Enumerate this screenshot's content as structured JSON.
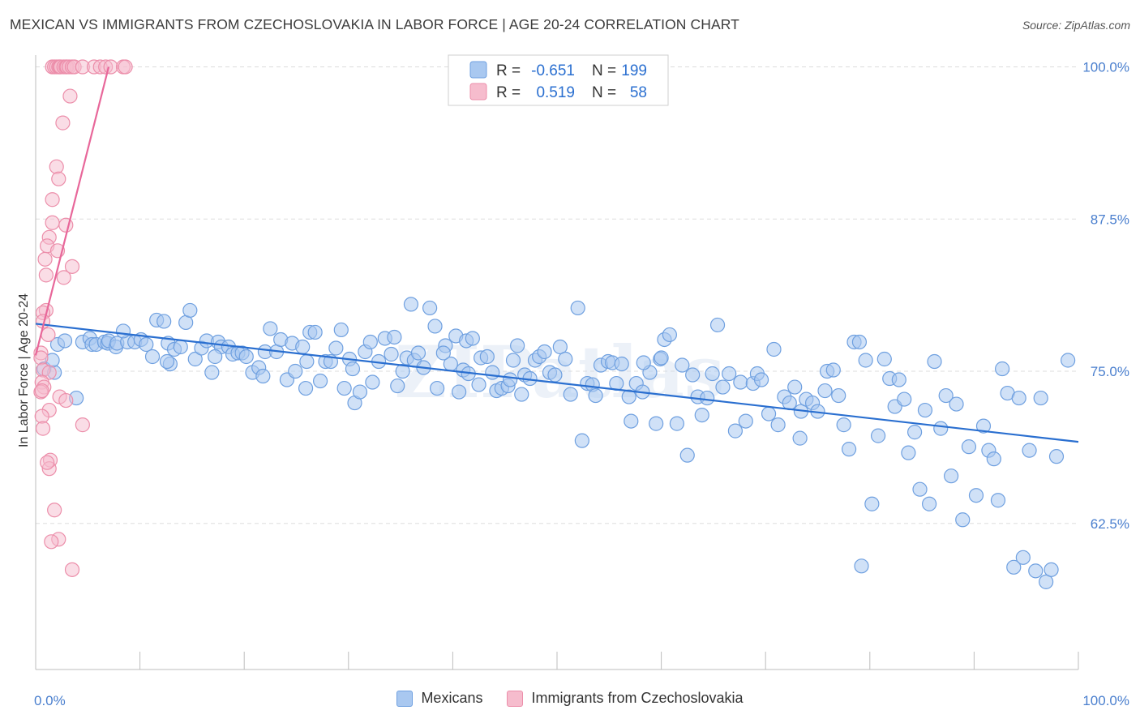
{
  "title": "MEXICAN VS IMMIGRANTS FROM CZECHOSLOVAKIA IN LABOR FORCE | AGE 20-24 CORRELATION CHART",
  "source": "Source: ZipAtlas.com",
  "watermark": "ZIPatlas",
  "colors": {
    "blue_fill": "#a9c8f0",
    "blue_stroke": "#6fa0e0",
    "blue_line": "#2a6fd0",
    "pink_fill": "#f6bccd",
    "pink_stroke": "#ec8eaa",
    "pink_line": "#e8679a",
    "tick_text": "#4a7fce",
    "grid": "#dddddd"
  },
  "legend": {
    "rows": [
      {
        "r_label": "R =",
        "r_value": "-0.651",
        "n_label": "N =",
        "n_value": "199"
      },
      {
        "r_label": "R =",
        "r_value": "0.519",
        "n_label": "N =",
        "n_value": "58"
      }
    ]
  },
  "bottom_legend": [
    "Mexicans",
    "Immigrants from Czechoslovakia"
  ],
  "chart_data": {
    "type": "scatter",
    "title": "MEXICAN VS IMMIGRANTS FROM CZECHOSLOVAKIA IN LABOR FORCE | AGE 20-24 CORRELATION CHART",
    "xlabel": "",
    "ylabel": "In Labor Force | Age 20-24",
    "xlim": [
      0,
      100
    ],
    "ylim": [
      50.5,
      101.5
    ],
    "x_tick_labels": [
      "0.0%",
      "100.0%"
    ],
    "y_ticks": [
      62.5,
      75.0,
      87.5,
      100.0
    ],
    "y_tick_labels": [
      "62.5%",
      "75.0%",
      "87.5%",
      "100.0%"
    ],
    "grid": true,
    "series": [
      {
        "name": "Mexicans",
        "R": -0.651,
        "N": 199,
        "trend": {
          "x": [
            0,
            100
          ],
          "y": [
            78.9,
            69.2
          ]
        },
        "points": [
          [
            0.8,
            75.2
          ],
          [
            1.8,
            74.9
          ],
          [
            1.6,
            75.9
          ],
          [
            2.1,
            77.2
          ],
          [
            2.8,
            77.5
          ],
          [
            3.9,
            72.8
          ],
          [
            4.5,
            77.4
          ],
          [
            5.2,
            77.7
          ],
          [
            5.4,
            77.2
          ],
          [
            5.8,
            77.2
          ],
          [
            6.6,
            77.4
          ],
          [
            6.9,
            77.3
          ],
          [
            7.0,
            77.5
          ],
          [
            7.7,
            77.0
          ],
          [
            7.8,
            77.3
          ],
          [
            8.8,
            77.4
          ],
          [
            8.4,
            78.3
          ],
          [
            9.5,
            77.4
          ],
          [
            10.1,
            77.6
          ],
          [
            10.6,
            77.2
          ],
          [
            11.2,
            76.2
          ],
          [
            11.6,
            79.2
          ],
          [
            12.3,
            79.1
          ],
          [
            12.7,
            77.3
          ],
          [
            12.9,
            75.6
          ],
          [
            13.3,
            76.8
          ],
          [
            13.9,
            77.0
          ],
          [
            14.4,
            79.0
          ],
          [
            14.8,
            80.0
          ],
          [
            15.3,
            76.0
          ],
          [
            15.9,
            76.9
          ],
          [
            16.4,
            77.5
          ],
          [
            16.9,
            74.9
          ],
          [
            17.5,
            77.4
          ],
          [
            17.8,
            77.0
          ],
          [
            18.5,
            77.0
          ],
          [
            18.9,
            76.4
          ],
          [
            19.4,
            76.5
          ],
          [
            19.8,
            76.5
          ],
          [
            20.2,
            76.2
          ],
          [
            20.8,
            74.9
          ],
          [
            21.4,
            75.3
          ],
          [
            22.0,
            76.6
          ],
          [
            22.5,
            78.5
          ],
          [
            23.1,
            76.6
          ],
          [
            23.5,
            77.6
          ],
          [
            24.1,
            74.3
          ],
          [
            24.6,
            77.3
          ],
          [
            24.9,
            75.0
          ],
          [
            25.6,
            77.0
          ],
          [
            25.9,
            73.6
          ],
          [
            26.3,
            78.2
          ],
          [
            26.8,
            78.2
          ],
          [
            27.3,
            74.2
          ],
          [
            27.8,
            75.8
          ],
          [
            28.3,
            75.8
          ],
          [
            28.8,
            76.9
          ],
          [
            29.3,
            78.4
          ],
          [
            29.6,
            73.6
          ],
          [
            30.1,
            76.0
          ],
          [
            30.6,
            72.4
          ],
          [
            31.1,
            73.3
          ],
          [
            31.6,
            76.6
          ],
          [
            32.1,
            77.4
          ],
          [
            32.3,
            74.1
          ],
          [
            32.9,
            75.8
          ],
          [
            33.5,
            77.7
          ],
          [
            34.1,
            76.4
          ],
          [
            34.7,
            73.8
          ],
          [
            35.2,
            75.0
          ],
          [
            35.6,
            76.1
          ],
          [
            36.0,
            80.5
          ],
          [
            36.3,
            75.9
          ],
          [
            36.7,
            76.5
          ],
          [
            37.2,
            75.3
          ],
          [
            37.8,
            80.2
          ],
          [
            38.3,
            78.7
          ],
          [
            38.5,
            73.6
          ],
          [
            39.3,
            77.1
          ],
          [
            39.8,
            75.6
          ],
          [
            40.3,
            77.9
          ],
          [
            40.6,
            73.3
          ],
          [
            41.0,
            75.1
          ],
          [
            41.3,
            77.5
          ],
          [
            41.9,
            77.7
          ],
          [
            42.5,
            73.9
          ],
          [
            42.7,
            76.1
          ],
          [
            43.3,
            76.2
          ],
          [
            43.8,
            74.9
          ],
          [
            44.2,
            73.4
          ],
          [
            44.7,
            73.6
          ],
          [
            45.3,
            73.8
          ],
          [
            45.5,
            74.3
          ],
          [
            46.2,
            77.1
          ],
          [
            46.6,
            73.1
          ],
          [
            46.9,
            74.7
          ],
          [
            47.4,
            74.4
          ],
          [
            47.9,
            75.9
          ],
          [
            48.3,
            76.2
          ],
          [
            48.8,
            76.6
          ],
          [
            49.3,
            74.9
          ],
          [
            49.8,
            74.7
          ],
          [
            50.3,
            77.0
          ],
          [
            50.8,
            76.0
          ],
          [
            51.3,
            73.1
          ],
          [
            52.0,
            80.2
          ],
          [
            52.4,
            69.3
          ],
          [
            52.9,
            74.0
          ],
          [
            53.4,
            73.9
          ],
          [
            53.7,
            73.0
          ],
          [
            54.2,
            75.5
          ],
          [
            54.9,
            75.8
          ],
          [
            55.3,
            75.7
          ],
          [
            55.7,
            74.0
          ],
          [
            56.2,
            75.6
          ],
          [
            56.9,
            72.9
          ],
          [
            57.1,
            70.9
          ],
          [
            57.6,
            74.0
          ],
          [
            58.2,
            73.3
          ],
          [
            58.9,
            74.9
          ],
          [
            59.5,
            70.7
          ],
          [
            59.9,
            76.0
          ],
          [
            60.3,
            77.6
          ],
          [
            60.8,
            78.0
          ],
          [
            61.5,
            70.7
          ],
          [
            62.0,
            75.5
          ],
          [
            62.5,
            68.1
          ],
          [
            63.0,
            74.7
          ],
          [
            63.5,
            72.9
          ],
          [
            63.9,
            71.4
          ],
          [
            64.4,
            72.8
          ],
          [
            64.9,
            74.8
          ],
          [
            65.4,
            78.8
          ],
          [
            65.9,
            73.7
          ],
          [
            66.5,
            74.8
          ],
          [
            67.1,
            70.1
          ],
          [
            67.6,
            74.1
          ],
          [
            68.1,
            70.9
          ],
          [
            68.8,
            74.0
          ],
          [
            69.2,
            74.8
          ],
          [
            69.6,
            74.3
          ],
          [
            70.3,
            71.5
          ],
          [
            70.8,
            76.8
          ],
          [
            71.2,
            70.6
          ],
          [
            71.8,
            72.9
          ],
          [
            72.3,
            72.4
          ],
          [
            72.8,
            73.7
          ],
          [
            73.4,
            71.7
          ],
          [
            73.9,
            72.7
          ],
          [
            74.5,
            72.4
          ],
          [
            75.0,
            71.7
          ],
          [
            75.7,
            73.4
          ],
          [
            75.9,
            75.0
          ],
          [
            76.5,
            75.1
          ],
          [
            77.0,
            73.0
          ],
          [
            77.5,
            70.6
          ],
          [
            78.0,
            68.6
          ],
          [
            78.5,
            77.4
          ],
          [
            79.0,
            77.4
          ],
          [
            79.6,
            75.9
          ],
          [
            80.2,
            64.1
          ],
          [
            80.8,
            69.7
          ],
          [
            81.4,
            76.0
          ],
          [
            81.9,
            74.4
          ],
          [
            82.4,
            72.1
          ],
          [
            82.8,
            74.3
          ],
          [
            83.3,
            72.7
          ],
          [
            83.7,
            68.3
          ],
          [
            84.3,
            70.0
          ],
          [
            84.8,
            65.3
          ],
          [
            85.3,
            71.8
          ],
          [
            85.7,
            64.1
          ],
          [
            86.2,
            75.8
          ],
          [
            86.8,
            70.3
          ],
          [
            87.3,
            73.0
          ],
          [
            87.8,
            66.4
          ],
          [
            88.3,
            72.3
          ],
          [
            88.9,
            62.8
          ],
          [
            89.5,
            68.8
          ],
          [
            90.2,
            64.8
          ],
          [
            90.9,
            70.5
          ],
          [
            91.4,
            68.5
          ],
          [
            91.9,
            67.8
          ],
          [
            92.3,
            64.4
          ],
          [
            92.7,
            75.2
          ],
          [
            93.2,
            73.2
          ],
          [
            93.8,
            58.9
          ],
          [
            94.3,
            72.8
          ],
          [
            94.7,
            59.7
          ],
          [
            95.3,
            68.5
          ],
          [
            95.9,
            58.6
          ],
          [
            96.4,
            72.8
          ],
          [
            96.9,
            57.7
          ],
          [
            97.4,
            58.7
          ],
          [
            97.9,
            68.0
          ],
          [
            99.0,
            75.9
          ],
          [
            79.2,
            59.0
          ],
          [
            73.3,
            69.5
          ],
          [
            60.0,
            76.1
          ],
          [
            58.3,
            75.7
          ],
          [
            45.8,
            75.9
          ],
          [
            41.5,
            74.8
          ],
          [
            39.1,
            76.5
          ],
          [
            34.4,
            77.8
          ],
          [
            30.4,
            75.2
          ],
          [
            26.0,
            75.8
          ],
          [
            21.8,
            74.6
          ],
          [
            17.2,
            76.2
          ],
          [
            12.6,
            75.8
          ]
        ]
      },
      {
        "name": "Immigrants from Czechoslovakia",
        "R": 0.519,
        "N": 58,
        "trend": {
          "x": [
            0,
            7.0
          ],
          "y": [
            76.3,
            100.0
          ]
        },
        "points": [
          [
            1.6,
            100.0
          ],
          [
            1.8,
            100.0
          ],
          [
            2.0,
            100.0
          ],
          [
            2.2,
            100.0
          ],
          [
            2.3,
            100.0
          ],
          [
            2.4,
            100.0
          ],
          [
            2.7,
            100.0
          ],
          [
            2.9,
            100.0
          ],
          [
            3.0,
            100.0
          ],
          [
            3.2,
            100.0
          ],
          [
            3.5,
            100.0
          ],
          [
            3.7,
            100.0
          ],
          [
            4.5,
            100.0
          ],
          [
            5.6,
            100.0
          ],
          [
            6.2,
            100.0
          ],
          [
            6.7,
            100.0
          ],
          [
            7.2,
            100.0
          ],
          [
            8.4,
            100.0
          ],
          [
            8.6,
            100.0
          ],
          [
            3.3,
            97.6
          ],
          [
            2.6,
            95.4
          ],
          [
            2.0,
            91.8
          ],
          [
            2.2,
            90.8
          ],
          [
            1.6,
            89.1
          ],
          [
            1.6,
            87.2
          ],
          [
            2.9,
            87.0
          ],
          [
            1.3,
            86.0
          ],
          [
            1.1,
            85.3
          ],
          [
            2.1,
            84.9
          ],
          [
            0.9,
            84.2
          ],
          [
            2.7,
            82.7
          ],
          [
            1.0,
            82.9
          ],
          [
            3.5,
            83.6
          ],
          [
            1.0,
            80.0
          ],
          [
            0.7,
            79.8
          ],
          [
            0.7,
            79.1
          ],
          [
            1.2,
            78.0
          ],
          [
            0.5,
            76.5
          ],
          [
            0.5,
            76.1
          ],
          [
            0.7,
            75.1
          ],
          [
            1.3,
            74.9
          ],
          [
            0.6,
            74.1
          ],
          [
            0.8,
            73.7
          ],
          [
            0.5,
            73.3
          ],
          [
            0.6,
            73.4
          ],
          [
            2.3,
            72.9
          ],
          [
            2.9,
            72.6
          ],
          [
            1.3,
            71.8
          ],
          [
            0.6,
            71.3
          ],
          [
            0.7,
            70.3
          ],
          [
            4.5,
            70.6
          ],
          [
            1.4,
            67.7
          ],
          [
            1.3,
            67.0
          ],
          [
            1.1,
            67.5
          ],
          [
            1.8,
            63.6
          ],
          [
            2.2,
            61.2
          ],
          [
            1.5,
            61.0
          ],
          [
            3.5,
            58.7
          ]
        ]
      }
    ]
  }
}
